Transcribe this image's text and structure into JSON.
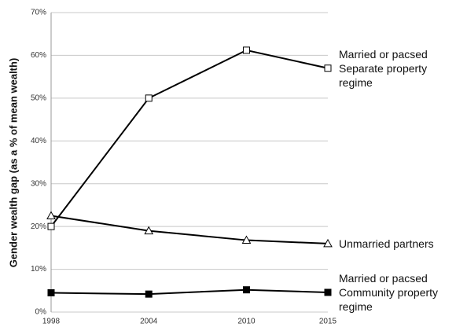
{
  "chart_data": {
    "type": "line",
    "y_label": "Gender wealth gap (as a % of mean wealth)",
    "x": [
      1998,
      2004,
      2010,
      2015
    ],
    "xlim": [
      1998,
      2015
    ],
    "xticks": [
      1998,
      2004,
      2010,
      2015
    ],
    "ylim": [
      0,
      70
    ],
    "yticks": [
      {
        "value": 0,
        "label": "0%"
      },
      {
        "value": 10,
        "label": "10%"
      },
      {
        "value": 20,
        "label": "20%"
      },
      {
        "value": 30,
        "label": "30%"
      },
      {
        "value": 40,
        "label": "40%"
      },
      {
        "value": 50,
        "label": "50%"
      },
      {
        "value": 60,
        "label": "60%"
      },
      {
        "value": 70,
        "label": "70%"
      }
    ],
    "grid": true,
    "series": [
      {
        "name": "Married or pacsed Separate property regime",
        "color": "#000000",
        "marker": "open-square",
        "values": [
          20,
          50,
          61.2,
          57
        ]
      },
      {
        "name": "Unmarried partners",
        "color": "#000000",
        "marker": "open-triangle",
        "values": [
          22.5,
          19,
          16.8,
          16
        ]
      },
      {
        "name": "Married or pacsed Community property regime",
        "color": "#000000",
        "marker": "filled-square",
        "values": [
          4.5,
          4.2,
          5.2,
          4.6
        ]
      }
    ]
  }
}
